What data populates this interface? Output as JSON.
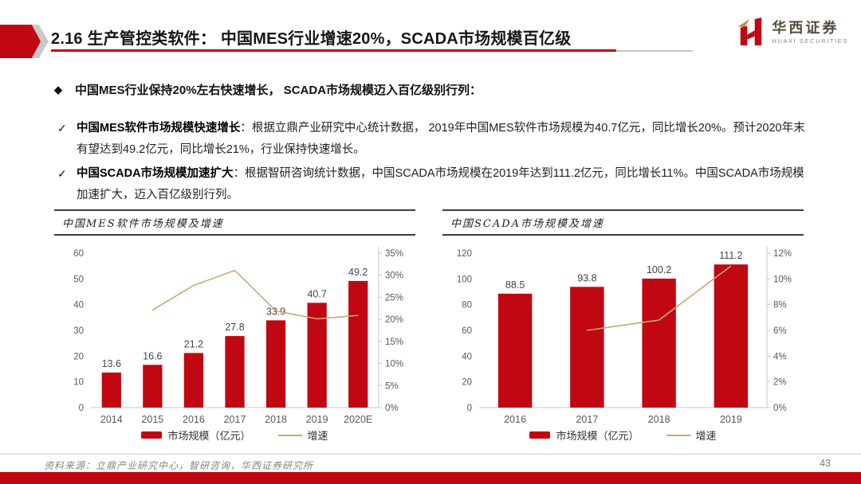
{
  "header": {
    "title": "2.16 生产管控类软件： 中国MES行业增速20%，SCADA市场规模百亿级",
    "logo_name": "华西证券",
    "logo_subtitle": "HUAXI SECURITIES"
  },
  "bullets": {
    "main_marker": "◆",
    "main": "中国MES行业保持20%左右快速增长， SCADA市场规模迈入百亿级别行列：",
    "item_marker": "✓",
    "items": [
      {
        "lead": "中国MES软件市场规模快速增长",
        "text": "：根据立鼎产业研究中心统计数据， 2019年中国MES软件市场规模为40.7亿元，同比增长20%。预计2020年末有望达到49.2亿元，同比增长21%，行业保持快速增长。"
      },
      {
        "lead": "中国SCADA市场规模加速扩大",
        "text": "：根据智研咨询统计数据，中国SCADA市场规模在2019年达到111.2亿元，同比增长11%。中国SCADA市场规模加速扩大，迈入百亿级别行列。"
      }
    ]
  },
  "chart_data": [
    {
      "type": "bar+line",
      "title": "中国MES软件市场规模及增速",
      "categories": [
        "2014",
        "2015",
        "2016",
        "2017",
        "2018",
        "2019",
        "2020E"
      ],
      "bar_series": {
        "name": "市场规模（亿元）",
        "values": [
          13.6,
          16.6,
          21.2,
          27.8,
          33.9,
          40.7,
          49.2
        ],
        "color": "#c00712"
      },
      "line_series": {
        "name": "增速",
        "values": [
          null,
          22.1,
          27.7,
          31.1,
          21.9,
          20.1,
          20.9
        ],
        "color": "#c9a86e"
      },
      "left_axis": {
        "min": 0,
        "max": 60,
        "step": 10,
        "suffix": ""
      },
      "right_axis": {
        "min": 0,
        "max": 35,
        "step": 5,
        "suffix": "%"
      },
      "grid": false,
      "legend_position": "bottom"
    },
    {
      "type": "bar+line",
      "title": "中国SCADA市场规模及增速",
      "categories": [
        "2016",
        "2017",
        "2018",
        "2019"
      ],
      "bar_series": {
        "name": "市场规模（亿元）",
        "values": [
          88.5,
          93.8,
          100.2,
          111.2
        ],
        "color": "#c00712"
      },
      "line_series": {
        "name": "增速",
        "values": [
          null,
          6.0,
          6.8,
          11.0
        ],
        "color": "#c9a86e"
      },
      "left_axis": {
        "min": 0,
        "max": 120,
        "step": 20,
        "suffix": ""
      },
      "right_axis": {
        "min": 0,
        "max": 12,
        "step": 2,
        "suffix": "%"
      },
      "grid": false,
      "legend_position": "bottom"
    }
  ],
  "footer": {
    "source": "资料来源：立鼎产业研究中心，智研咨询，华西证券研究所",
    "page": "43"
  },
  "colors": {
    "accent_red": "#c00712",
    "bar_red": "#c00712",
    "line_tan": "#c9a86e",
    "logo_gold": "#b98e4e"
  }
}
